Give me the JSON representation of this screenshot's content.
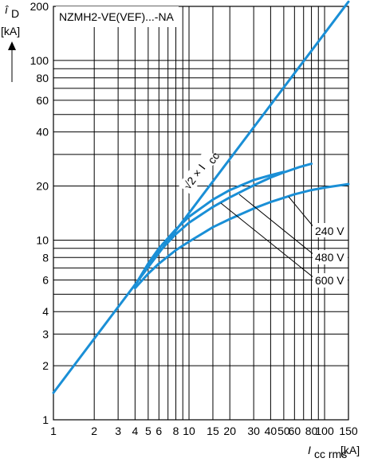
{
  "chart_data": {
    "type": "line",
    "title": "NZMH2-VE(VEF)...-NA",
    "ylabel": {
      "symbol": "î",
      "sub": "D",
      "unit": "[kA]"
    },
    "xlabel": {
      "symbol": "I",
      "sub": "cc rms",
      "unit": "[kA]"
    },
    "x_scale": "log",
    "y_scale": "log",
    "xlim": [
      1,
      150
    ],
    "ylim": [
      1,
      200
    ],
    "x_ticks": [
      {
        "v": 1,
        "label": "1"
      },
      {
        "v": 2,
        "label": "2"
      },
      {
        "v": 3,
        "label": "3"
      },
      {
        "v": 4,
        "label": "4"
      },
      {
        "v": 5,
        "label": "5"
      },
      {
        "v": 6,
        "label": "6"
      },
      {
        "v": 8,
        "label": "8"
      },
      {
        "v": 10,
        "label": "10"
      },
      {
        "v": 15,
        "label": "15"
      },
      {
        "v": 20,
        "label": "20"
      },
      {
        "v": 30,
        "label": "30"
      },
      {
        "v": 40,
        "label": "40"
      },
      {
        "v": 50,
        "label": "50"
      },
      {
        "v": 60,
        "label": "60"
      },
      {
        "v": 80,
        "label": "80"
      },
      {
        "v": 100,
        "label": "100"
      },
      {
        "v": 150,
        "label": "150"
      }
    ],
    "x_grid": [
      1,
      2,
      3,
      4,
      5,
      6,
      7,
      8,
      9,
      10,
      15,
      20,
      30,
      40,
      50,
      60,
      70,
      80,
      90,
      100,
      150
    ],
    "y_ticks": [
      {
        "v": 1,
        "label": "1"
      },
      {
        "v": 2,
        "label": "2"
      },
      {
        "v": 3,
        "label": "3"
      },
      {
        "v": 4,
        "label": "4"
      },
      {
        "v": 6,
        "label": "6"
      },
      {
        "v": 8,
        "label": "8"
      },
      {
        "v": 10,
        "label": "10"
      },
      {
        "v": 20,
        "label": "20"
      },
      {
        "v": 40,
        "label": "40"
      },
      {
        "v": 60,
        "label": "60"
      },
      {
        "v": 80,
        "label": "80"
      },
      {
        "v": 100,
        "label": "100"
      },
      {
        "v": 200,
        "label": "200"
      }
    ],
    "y_grid": [
      1,
      2,
      3,
      4,
      5,
      6,
      7,
      8,
      9,
      10,
      20,
      30,
      40,
      50,
      60,
      70,
      80,
      90,
      100,
      200
    ],
    "series": [
      {
        "name": "√2 × Icc",
        "x": [
          1,
          150
        ],
        "y": [
          1.414,
          212.1
        ]
      },
      {
        "name": "240 V",
        "x": [
          4,
          5,
          6,
          8,
          10,
          15,
          20,
          30,
          40,
          50
        ],
        "y": [
          5.6,
          7.4,
          9.0,
          11.5,
          13.5,
          16.8,
          19.0,
          21.6,
          23.0,
          24.0
        ]
      },
      {
        "name": "480 V",
        "x": [
          4,
          5,
          6,
          8,
          10,
          15,
          20,
          30,
          40,
          50,
          65,
          80
        ],
        "y": [
          5.6,
          7.2,
          8.6,
          10.8,
          12.5,
          15.3,
          17.3,
          20.2,
          22.3,
          23.8,
          25.5,
          26.6
        ]
      },
      {
        "name": "600 V",
        "x": [
          4,
          5,
          6,
          8,
          10,
          15,
          20,
          30,
          40,
          50,
          60,
          80,
          100,
          150
        ],
        "y": [
          5.4,
          6.5,
          7.4,
          8.8,
          9.8,
          11.8,
          13.1,
          15.0,
          16.3,
          17.2,
          18.0,
          19.0,
          19.6,
          20.5
        ]
      }
    ],
    "annotations": {
      "sqrt2": "√2 × I",
      "sqrt2_sub": "cc",
      "v240": "240 V",
      "v480": "480 V",
      "v600": "600 V"
    }
  }
}
